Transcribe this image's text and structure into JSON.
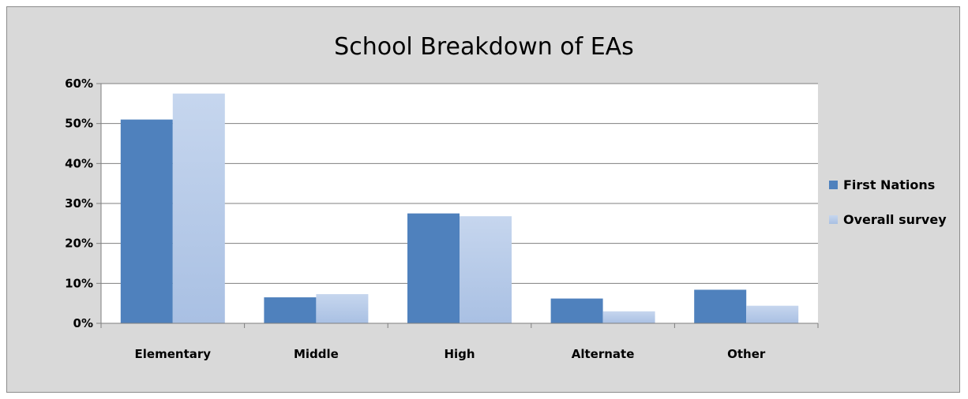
{
  "chart_data": {
    "type": "bar",
    "title": "School Breakdown of EAs",
    "categories": [
      "Elementary",
      "Middle",
      "High",
      "Alternate",
      "Other"
    ],
    "series": [
      {
        "name": "First Nations",
        "values": [
          51,
          6.5,
          27.5,
          6.2,
          8.4
        ],
        "color": "#4f81bd"
      },
      {
        "name": "Overall survey",
        "values": [
          57.5,
          7.3,
          26.8,
          3.0,
          4.4
        ],
        "color": "#b9cde9"
      }
    ],
    "xlabel": "",
    "ylabel": "",
    "ylim": [
      0,
      60
    ],
    "yticks": [
      "0%",
      "10%",
      "20%",
      "30%",
      "40%",
      "50%",
      "60%"
    ],
    "grid": true,
    "legend": "right"
  }
}
